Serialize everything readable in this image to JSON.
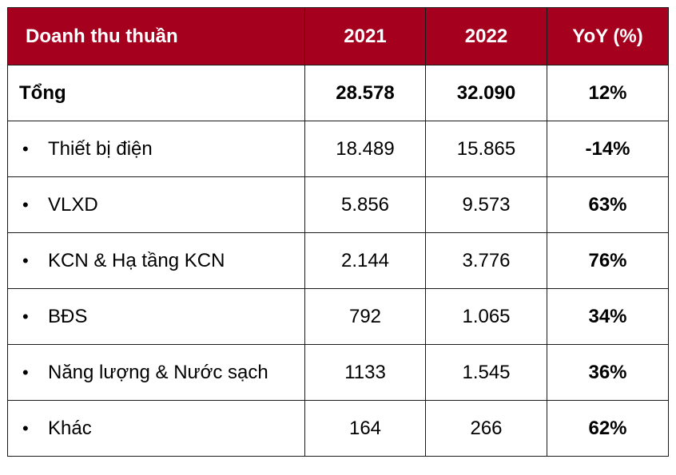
{
  "table": {
    "header": {
      "col1": "Doanh thu thuần",
      "col2": "2021",
      "col3": "2022",
      "col4": "YoY (%)"
    },
    "header_color": "#a5001e",
    "total": {
      "label": "Tổng",
      "y2021": "28.578",
      "y2022": "32.090",
      "yoy": "12%"
    },
    "rows": [
      {
        "bullet": "•",
        "label": "Thiết bị điện",
        "y2021": "18.489",
        "y2022": "15.865",
        "yoy": "-14%"
      },
      {
        "bullet": "•",
        "label": "VLXD",
        "y2021": "5.856",
        "y2022": "9.573",
        "yoy": "63%"
      },
      {
        "bullet": "•",
        "label": "KCN & Hạ tầng KCN",
        "y2021": "2.144",
        "y2022": "3.776",
        "yoy": "76%"
      },
      {
        "bullet": "•",
        "label": "BĐS",
        "y2021": "792",
        "y2022": "1.065",
        "yoy": "34%"
      },
      {
        "bullet": "•",
        "label": "Năng lượng & Nước sạch",
        "y2021": "1133",
        "y2022": "1.545",
        "yoy": "36%"
      },
      {
        "bullet": "•",
        "label": "Khác",
        "y2021": "164",
        "y2022": "266",
        "yoy": "62%"
      }
    ]
  }
}
